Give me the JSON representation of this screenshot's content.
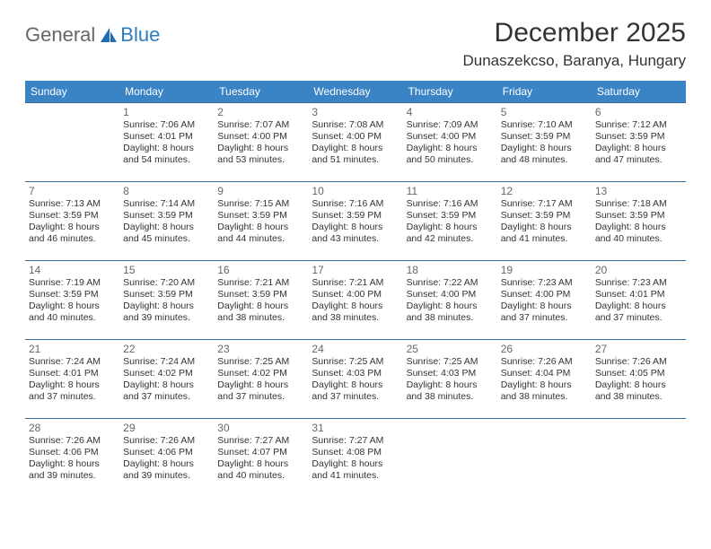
{
  "logo": {
    "text1": "General",
    "text2": "Blue"
  },
  "title": "December 2025",
  "location": "Dunaszekcso, Baranya, Hungary",
  "colors": {
    "header_bg": "#3a84c6",
    "header_fg": "#ffffff",
    "row_border": "#3a6a9a",
    "logo_accent": "#2b7bbf",
    "sail_fill": "#1f6db3"
  },
  "weekdays": [
    "Sunday",
    "Monday",
    "Tuesday",
    "Wednesday",
    "Thursday",
    "Friday",
    "Saturday"
  ],
  "weeks": [
    [
      null,
      {
        "n": "1",
        "sr": "Sunrise: 7:06 AM",
        "ss": "Sunset: 4:01 PM",
        "dl": "Daylight: 8 hours and 54 minutes."
      },
      {
        "n": "2",
        "sr": "Sunrise: 7:07 AM",
        "ss": "Sunset: 4:00 PM",
        "dl": "Daylight: 8 hours and 53 minutes."
      },
      {
        "n": "3",
        "sr": "Sunrise: 7:08 AM",
        "ss": "Sunset: 4:00 PM",
        "dl": "Daylight: 8 hours and 51 minutes."
      },
      {
        "n": "4",
        "sr": "Sunrise: 7:09 AM",
        "ss": "Sunset: 4:00 PM",
        "dl": "Daylight: 8 hours and 50 minutes."
      },
      {
        "n": "5",
        "sr": "Sunrise: 7:10 AM",
        "ss": "Sunset: 3:59 PM",
        "dl": "Daylight: 8 hours and 48 minutes."
      },
      {
        "n": "6",
        "sr": "Sunrise: 7:12 AM",
        "ss": "Sunset: 3:59 PM",
        "dl": "Daylight: 8 hours and 47 minutes."
      }
    ],
    [
      {
        "n": "7",
        "sr": "Sunrise: 7:13 AM",
        "ss": "Sunset: 3:59 PM",
        "dl": "Daylight: 8 hours and 46 minutes."
      },
      {
        "n": "8",
        "sr": "Sunrise: 7:14 AM",
        "ss": "Sunset: 3:59 PM",
        "dl": "Daylight: 8 hours and 45 minutes."
      },
      {
        "n": "9",
        "sr": "Sunrise: 7:15 AM",
        "ss": "Sunset: 3:59 PM",
        "dl": "Daylight: 8 hours and 44 minutes."
      },
      {
        "n": "10",
        "sr": "Sunrise: 7:16 AM",
        "ss": "Sunset: 3:59 PM",
        "dl": "Daylight: 8 hours and 43 minutes."
      },
      {
        "n": "11",
        "sr": "Sunrise: 7:16 AM",
        "ss": "Sunset: 3:59 PM",
        "dl": "Daylight: 8 hours and 42 minutes."
      },
      {
        "n": "12",
        "sr": "Sunrise: 7:17 AM",
        "ss": "Sunset: 3:59 PM",
        "dl": "Daylight: 8 hours and 41 minutes."
      },
      {
        "n": "13",
        "sr": "Sunrise: 7:18 AM",
        "ss": "Sunset: 3:59 PM",
        "dl": "Daylight: 8 hours and 40 minutes."
      }
    ],
    [
      {
        "n": "14",
        "sr": "Sunrise: 7:19 AM",
        "ss": "Sunset: 3:59 PM",
        "dl": "Daylight: 8 hours and 40 minutes."
      },
      {
        "n": "15",
        "sr": "Sunrise: 7:20 AM",
        "ss": "Sunset: 3:59 PM",
        "dl": "Daylight: 8 hours and 39 minutes."
      },
      {
        "n": "16",
        "sr": "Sunrise: 7:21 AM",
        "ss": "Sunset: 3:59 PM",
        "dl": "Daylight: 8 hours and 38 minutes."
      },
      {
        "n": "17",
        "sr": "Sunrise: 7:21 AM",
        "ss": "Sunset: 4:00 PM",
        "dl": "Daylight: 8 hours and 38 minutes."
      },
      {
        "n": "18",
        "sr": "Sunrise: 7:22 AM",
        "ss": "Sunset: 4:00 PM",
        "dl": "Daylight: 8 hours and 38 minutes."
      },
      {
        "n": "19",
        "sr": "Sunrise: 7:23 AM",
        "ss": "Sunset: 4:00 PM",
        "dl": "Daylight: 8 hours and 37 minutes."
      },
      {
        "n": "20",
        "sr": "Sunrise: 7:23 AM",
        "ss": "Sunset: 4:01 PM",
        "dl": "Daylight: 8 hours and 37 minutes."
      }
    ],
    [
      {
        "n": "21",
        "sr": "Sunrise: 7:24 AM",
        "ss": "Sunset: 4:01 PM",
        "dl": "Daylight: 8 hours and 37 minutes."
      },
      {
        "n": "22",
        "sr": "Sunrise: 7:24 AM",
        "ss": "Sunset: 4:02 PM",
        "dl": "Daylight: 8 hours and 37 minutes."
      },
      {
        "n": "23",
        "sr": "Sunrise: 7:25 AM",
        "ss": "Sunset: 4:02 PM",
        "dl": "Daylight: 8 hours and 37 minutes."
      },
      {
        "n": "24",
        "sr": "Sunrise: 7:25 AM",
        "ss": "Sunset: 4:03 PM",
        "dl": "Daylight: 8 hours and 37 minutes."
      },
      {
        "n": "25",
        "sr": "Sunrise: 7:25 AM",
        "ss": "Sunset: 4:03 PM",
        "dl": "Daylight: 8 hours and 38 minutes."
      },
      {
        "n": "26",
        "sr": "Sunrise: 7:26 AM",
        "ss": "Sunset: 4:04 PM",
        "dl": "Daylight: 8 hours and 38 minutes."
      },
      {
        "n": "27",
        "sr": "Sunrise: 7:26 AM",
        "ss": "Sunset: 4:05 PM",
        "dl": "Daylight: 8 hours and 38 minutes."
      }
    ],
    [
      {
        "n": "28",
        "sr": "Sunrise: 7:26 AM",
        "ss": "Sunset: 4:06 PM",
        "dl": "Daylight: 8 hours and 39 minutes."
      },
      {
        "n": "29",
        "sr": "Sunrise: 7:26 AM",
        "ss": "Sunset: 4:06 PM",
        "dl": "Daylight: 8 hours and 39 minutes."
      },
      {
        "n": "30",
        "sr": "Sunrise: 7:27 AM",
        "ss": "Sunset: 4:07 PM",
        "dl": "Daylight: 8 hours and 40 minutes."
      },
      {
        "n": "31",
        "sr": "Sunrise: 7:27 AM",
        "ss": "Sunset: 4:08 PM",
        "dl": "Daylight: 8 hours and 41 minutes."
      },
      null,
      null,
      null
    ]
  ]
}
